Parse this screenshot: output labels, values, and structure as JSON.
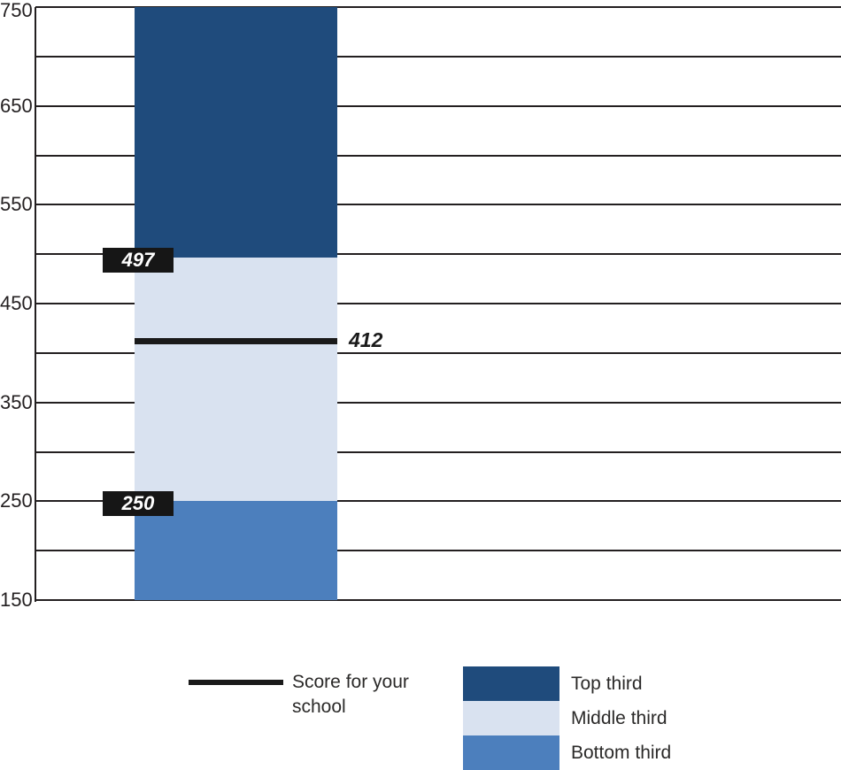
{
  "chart_data": {
    "type": "bar",
    "subtype": "stacked-range-band",
    "title": "",
    "xlabel": "",
    "ylabel": "",
    "ylim": [
      150,
      750
    ],
    "grid_step": 50,
    "yticks": [
      150,
      250,
      350,
      450,
      550,
      650,
      750
    ],
    "grid_on": true,
    "series": [
      {
        "name": "Bottom third",
        "from": 150,
        "to": 250,
        "color": "#4C7FBD"
      },
      {
        "name": "Middle third",
        "from": 250,
        "to": 497,
        "color": "#D9E2F0"
      },
      {
        "name": "Top third",
        "from": 497,
        "to": 750,
        "color": "#1F4B7C"
      }
    ],
    "boundary_labels": [
      {
        "value": 497,
        "label": "497"
      },
      {
        "value": 250,
        "label": "250"
      }
    ],
    "score_line": {
      "value": 412,
      "label": "412",
      "color": "#1A1A1A"
    },
    "legend": {
      "position": "bottom",
      "line_entry": {
        "label": "Score for your school"
      },
      "swatch_entries": [
        {
          "label": "Top third",
          "color": "#1F4B7C"
        },
        {
          "label": "Middle third",
          "color": "#D9E2F0"
        },
        {
          "label": "Bottom third",
          "color": "#4C7FBD"
        }
      ]
    },
    "colors": {
      "gridline": "#231F20",
      "callout_bg": "#161616",
      "callout_text": "#FFFFFF"
    }
  }
}
